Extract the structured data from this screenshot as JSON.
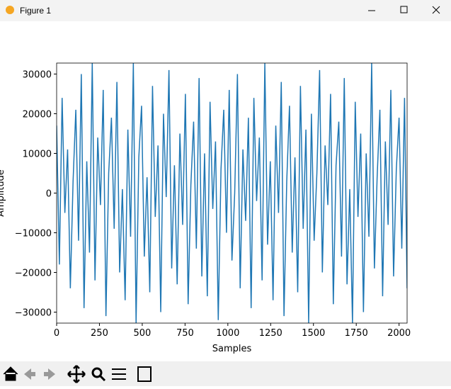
{
  "window_title": "Figure 1",
  "chart_data": {
    "type": "line",
    "xlabel": "Samples",
    "ylabel": "Amplitude",
    "x": [
      0,
      16,
      32,
      48,
      64,
      80,
      96,
      112,
      128,
      144,
      160,
      176,
      192,
      208,
      224,
      240,
      256,
      272,
      288,
      304,
      320,
      336,
      352,
      368,
      384,
      400,
      416,
      432,
      448,
      464,
      480,
      496,
      512,
      528,
      544,
      560,
      576,
      592,
      608,
      624,
      640,
      656,
      672,
      688,
      704,
      720,
      736,
      752,
      768,
      784,
      800,
      816,
      832,
      848,
      864,
      880,
      896,
      912,
      928,
      944,
      960,
      976,
      992,
      1008,
      1024,
      1040,
      1056,
      1072,
      1088,
      1104,
      1120,
      1136,
      1152,
      1168,
      1184,
      1200,
      1216,
      1232,
      1248,
      1264,
      1280,
      1296,
      1312,
      1328,
      1344,
      1360,
      1376,
      1392,
      1408,
      1424,
      1440,
      1456,
      1472,
      1488,
      1504,
      1520,
      1536,
      1552,
      1568,
      1584,
      1600,
      1616,
      1632,
      1648,
      1664,
      1680,
      1696,
      1712,
      1728,
      1744,
      1760,
      1776,
      1792,
      1808,
      1824,
      1840,
      1856,
      1872,
      1888,
      1904,
      1920,
      1936,
      1952,
      1968,
      1984,
      2000,
      2016,
      2032,
      2047
    ],
    "series": [
      {
        "color": "#1f77b4",
        "values": [
          17000,
          -18000,
          24000,
          -5000,
          11000,
          -24000,
          3000,
          21000,
          -12000,
          30000,
          -29000,
          8000,
          -15000,
          32767,
          -22000,
          14000,
          -3000,
          26000,
          -31000,
          5000,
          19000,
          -9000,
          28000,
          -20000,
          1000,
          -27000,
          16000,
          -11000,
          32767,
          -32768,
          9000,
          22000,
          -16000,
          4000,
          -25000,
          27000,
          -6000,
          12000,
          -30000,
          20000,
          -1000,
          31000,
          -19000,
          7000,
          -23000,
          15000,
          -8000,
          25000,
          -28000,
          2000,
          18000,
          -14000,
          29000,
          -21000,
          10000,
          -26000,
          23000,
          -4000,
          13000,
          -32000,
          6000,
          21000,
          -10000,
          26000,
          -17000,
          0,
          30000,
          -24000,
          11000,
          -7000,
          19000,
          -29000,
          24000,
          -2000,
          14000,
          -22000,
          32767,
          -13000,
          8000,
          -27000,
          17000,
          -5000,
          28000,
          -31000,
          3000,
          22000,
          -15000,
          9000,
          -25000,
          27000,
          -9000,
          16000,
          -32768,
          20000,
          -12000,
          5000,
          31000,
          -20000,
          12000,
          -3000,
          25000,
          -28000,
          7000,
          18000,
          -16000,
          29000,
          -23000,
          1000,
          -32768,
          23000,
          -6000,
          15000,
          -30000,
          10000,
          -11000,
          32767,
          -19000,
          4000,
          21000,
          -26000,
          13000,
          -8000,
          26000,
          -21000,
          6000,
          19000,
          -14000,
          24000,
          -24000
        ]
      }
    ],
    "xlim": [
      0,
      2047
    ],
    "ylim": [
      -32768,
      32767
    ],
    "xticks": [
      0,
      250,
      500,
      750,
      1000,
      1250,
      1500,
      1750,
      2000
    ],
    "yticks": [
      {
        "value": -30000,
        "label": "−30000"
      },
      {
        "value": -20000,
        "label": "−20000"
      },
      {
        "value": -10000,
        "label": "−10000"
      },
      0,
      10000,
      20000,
      30000
    ]
  }
}
